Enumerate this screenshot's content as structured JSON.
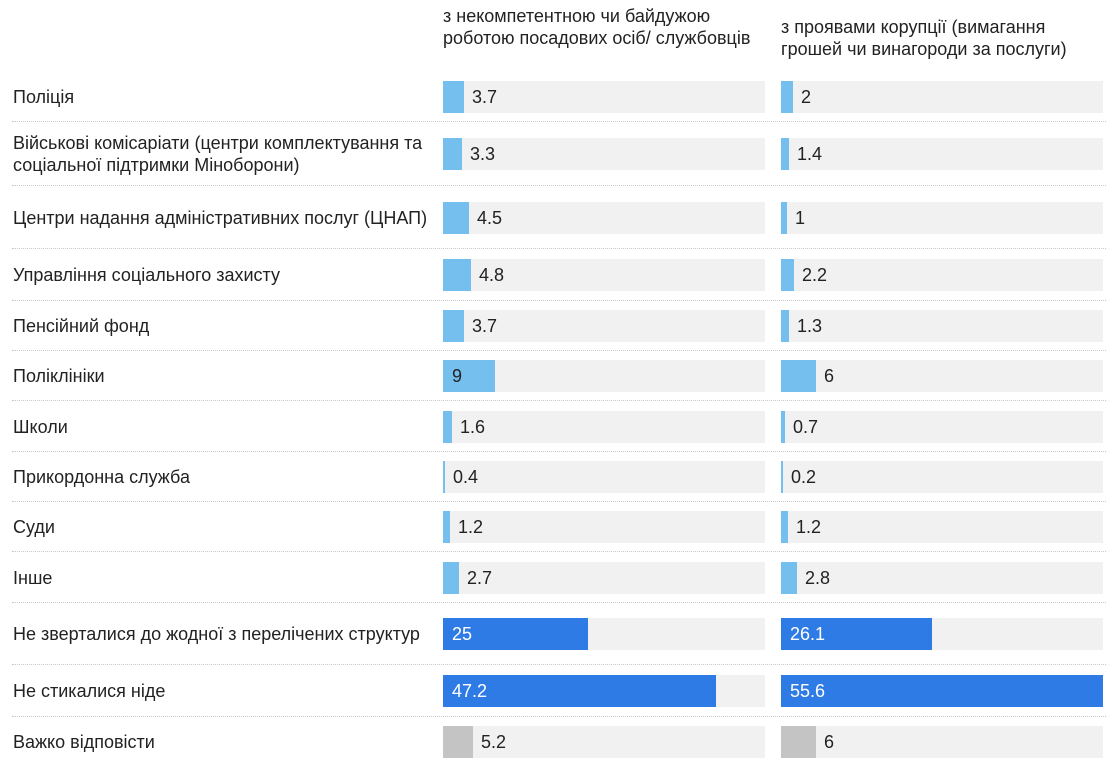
{
  "chart_data": {
    "type": "bar",
    "orientation": "horizontal",
    "title": "",
    "xlabel": "",
    "ylabel": "",
    "xlim": [
      0,
      55.6
    ],
    "grid": false,
    "legend": "none",
    "categories": [
      "Поліція",
      "Військові комісаріати (центри комплектування та соціальної підтримки Міноборони)",
      "Центри надання адміністративних послуг (ЦНАП)",
      "Управління соціального захисту",
      "Пенсійний фонд",
      "Поліклініки",
      "Школи",
      "Прикордонна служба",
      "Суди",
      "Інше",
      "Не зверталися до жодної з перелічених структур",
      "Не стикалися ніде",
      "Важко відповісти"
    ],
    "category_types": [
      "inst",
      "inst",
      "inst",
      "inst",
      "inst",
      "inst",
      "inst",
      "inst",
      "inst",
      "inst",
      "none",
      "none",
      "hard"
    ],
    "series": [
      {
        "name": "з некомпетентною чи байдужою роботою посадових осіб/ службовців",
        "values": [
          3.7,
          3.3,
          4.5,
          4.8,
          3.7,
          9,
          1.6,
          0.4,
          1.2,
          2.7,
          25,
          47.2,
          5.2
        ],
        "labels": [
          "3.7",
          "3.3",
          "4.5",
          "4.8",
          "3.7",
          "9",
          "1.6",
          "0.4",
          "1.2",
          "2.7",
          "25",
          "47.2",
          "5.2"
        ]
      },
      {
        "name": "з проявами корупції (вимагання грошей чи винагороди за послуги)",
        "values": [
          2,
          1.4,
          1,
          2.2,
          1.3,
          6,
          0.7,
          0.2,
          1.2,
          2.8,
          26.1,
          55.6,
          6
        ],
        "labels": [
          "2",
          "1.4",
          "1",
          "2.2",
          "1.3",
          "6",
          "0.7",
          "0.2",
          "1.2",
          "2.8",
          "26.1",
          "55.6",
          "6"
        ]
      }
    ]
  },
  "colors": {
    "institution_bar": "#74bfee",
    "no_contact_bar": "#2f7be6",
    "hard_to_say_bar": "#c4c4c4",
    "bar_background": "#f1f1f1",
    "text": "#222222",
    "text_on_dark": "#ffffff"
  }
}
